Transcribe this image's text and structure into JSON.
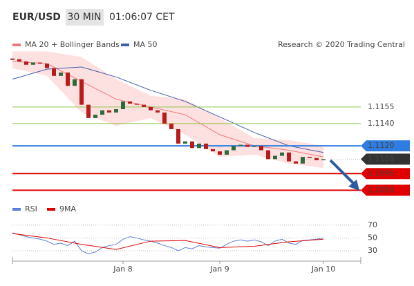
{
  "chart_data": {
    "type": "candlestick",
    "title": "EUR/USD",
    "timeframe": "30 MIN",
    "time": "01:06:07 CET",
    "credit": "Research © 2020 Trading Central",
    "categories": [
      null,
      null,
      null,
      null,
      null,
      null,
      null,
      null,
      null,
      null,
      null,
      null,
      null,
      null,
      null,
      null,
      "Jan 8",
      null,
      null,
      null,
      null,
      null,
      null,
      null,
      null,
      null,
      null,
      null,
      null,
      null,
      "Jan 9",
      null,
      null,
      null,
      null,
      null,
      null,
      null,
      null,
      null,
      null,
      null,
      null,
      null,
      null,
      "Jan 10"
    ],
    "close": [
      1.1198,
      1.1196,
      1.1193,
      1.1195,
      1.1194,
      1.119,
      1.1183,
      1.1186,
      1.1174,
      1.118,
      1.1157,
      1.1145,
      1.1148,
      1.1152,
      1.115,
      1.1153,
      1.116,
      1.1158,
      1.1157,
      1.1155,
      1.1152,
      1.115,
      1.114,
      1.1135,
      1.1122,
      1.1124,
      1.1118,
      1.1122,
      1.1117,
      1.1115,
      1.1112,
      1.1116,
      1.112,
      1.1121,
      1.1119,
      1.112,
      1.1116,
      1.1108,
      1.1111,
      1.1114,
      1.1106,
      1.1104,
      1.111,
      1.1109,
      1.1107,
      1.1108
    ],
    "up_color": "#2f6b3a",
    "down_color": "#b71c1c",
    "ylim": [
      1.1074,
      1.1214
    ],
    "series": [
      {
        "name": "MA 20 + Bollinger Bands",
        "color": "#f07878",
        "band_color": "#fde0e0",
        "x": [
          0,
          5,
          10,
          15,
          20,
          25,
          30,
          35,
          40,
          45
        ],
        "values": [
          1.1196,
          1.1194,
          1.1178,
          1.1162,
          1.1155,
          1.1148,
          1.113,
          1.112,
          1.1116,
          1.111
        ],
        "upper": [
          1.1205,
          1.1205,
          1.12,
          1.118,
          1.1165,
          1.1162,
          1.1145,
          1.1127,
          1.1125,
          1.112
        ],
        "lower": [
          1.119,
          1.1183,
          1.115,
          1.1138,
          1.1145,
          1.113,
          1.111,
          1.1112,
          1.1104,
          1.11
        ]
      },
      {
        "name": "MA 50",
        "color": "#3f5fa8",
        "x": [
          0,
          5,
          10,
          15,
          20,
          25,
          30,
          35,
          40,
          45
        ],
        "values": [
          1.118,
          1.1189,
          1.1191,
          1.1182,
          1.117,
          1.116,
          1.1146,
          1.1132,
          1.112,
          1.1114
        ]
      }
    ],
    "levels": [
      {
        "value": 1.1155,
        "label": "1.1155",
        "color": "#8bc34a",
        "box": false
      },
      {
        "value": 1.114,
        "label": "1.1140",
        "color": "#8bc34a",
        "box": false
      },
      {
        "value": 1.112,
        "label": "1.1120",
        "color": "#2f7de1",
        "box": true
      },
      {
        "value": 1.1095,
        "label": "1.1095",
        "color": "#e00000",
        "box": true
      },
      {
        "value": 1.108,
        "label": "1.1080",
        "color": "#e00000",
        "box": true
      }
    ],
    "current_price": 1.1108,
    "rsi": {
      "ylim": [
        17,
        98
      ],
      "yticks": [
        30,
        50,
        70
      ],
      "series": [
        {
          "name": "RSI",
          "color": "#5b7fd6",
          "values": [
            58,
            55,
            52,
            50,
            48,
            45,
            40,
            42,
            38,
            45,
            30,
            25,
            28,
            35,
            38,
            40,
            48,
            52,
            50,
            47,
            45,
            42,
            38,
            35,
            30,
            35,
            33,
            38,
            36,
            35,
            34,
            40,
            45,
            47,
            45,
            47,
            44,
            38,
            45,
            48,
            42,
            40,
            46,
            47,
            48,
            50
          ]
        },
        {
          "name": "9MA",
          "color": "#e00000",
          "x": [
            0,
            5,
            10,
            15,
            20,
            25,
            30,
            35,
            40,
            45
          ],
          "values": [
            57,
            50,
            40,
            32,
            45,
            46,
            35,
            37,
            44,
            48
          ]
        }
      ]
    }
  }
}
